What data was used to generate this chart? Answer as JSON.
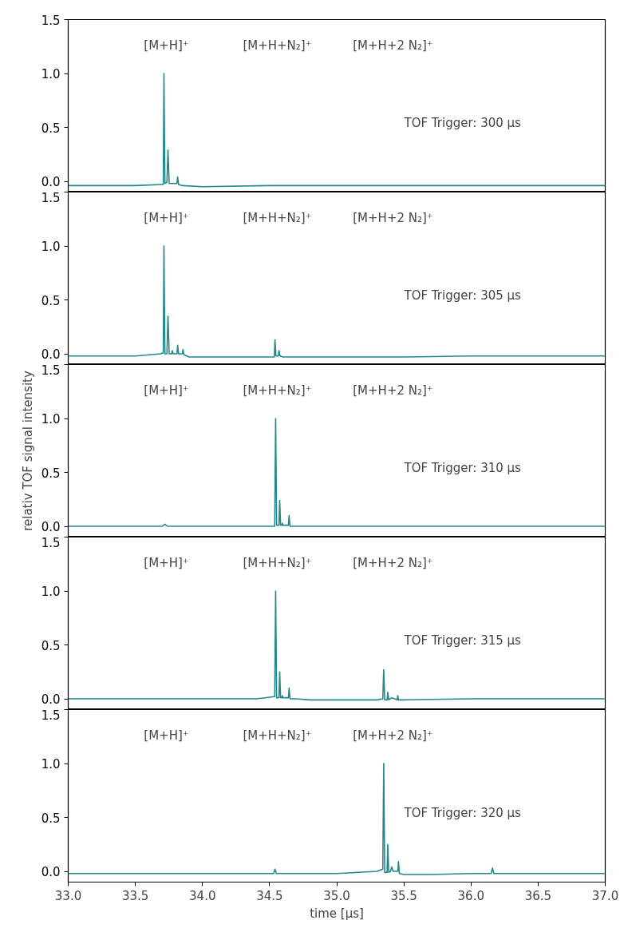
{
  "chart_data": [
    {
      "type": "line",
      "xlim": [
        33.0,
        37.0
      ],
      "ylim": [
        -0.1,
        1.5
      ],
      "tick_labels": "y",
      "yticks": [
        {
          "value": 0,
          "label": "0.0"
        },
        {
          "value": 0.5,
          "label": "0.5"
        },
        {
          "value": 1,
          "label": "1.0"
        },
        {
          "value": 1.5,
          "label": "1.5"
        }
      ],
      "annotations": [
        "[M+H]⁺",
        "[M+H+N₂]⁺",
        "[M+H+2 N₂]⁺",
        "TOF Trigger: 300 μs"
      ],
      "series": [
        {
          "color": "#23888e",
          "x": [
            33.0,
            33.5,
            33.7,
            33.708,
            33.713,
            33.72,
            33.735,
            33.743,
            33.752,
            33.81,
            33.815,
            33.822,
            33.85,
            34.0,
            34.5,
            35.0,
            35.5,
            36.0,
            36.5,
            37.0
          ],
          "values": [
            -0.04,
            -0.04,
            -0.03,
            -0.03,
            1.0,
            -0.02,
            -0.01,
            0.29,
            -0.02,
            -0.02,
            0.04,
            -0.03,
            -0.04,
            -0.05,
            -0.04,
            -0.04,
            -0.04,
            -0.04,
            -0.04,
            -0.04
          ]
        }
      ]
    },
    {
      "type": "line",
      "xlim": [
        33.0,
        37.0
      ],
      "ylim": [
        -0.1,
        1.5
      ],
      "tick_labels": "y",
      "yticks": [
        {
          "value": 0,
          "label": "0.0"
        },
        {
          "value": 0.5,
          "label": "0.5"
        },
        {
          "value": 1,
          "label": "1.0"
        },
        {
          "value": 1.5,
          "label": "1.5"
        }
      ],
      "annotations": [
        "[M+H]⁺",
        "[M+H+N₂]⁺",
        "[M+H+2 N₂]⁺",
        "TOF Trigger: 305 μs"
      ],
      "series": [
        {
          "color": "#23888e",
          "x": [
            33.0,
            33.5,
            33.69,
            33.708,
            33.713,
            33.72,
            33.735,
            33.743,
            33.752,
            33.77,
            33.775,
            33.782,
            33.81,
            33.815,
            33.822,
            33.85,
            33.855,
            33.862,
            33.9,
            34.0,
            34.5,
            34.535,
            34.54,
            34.547,
            34.565,
            34.57,
            34.577,
            34.6,
            35.0,
            35.5,
            36.0,
            36.5,
            37.0
          ],
          "values": [
            -0.02,
            -0.02,
            0.0,
            0.01,
            1.0,
            0.0,
            0.0,
            0.35,
            0.0,
            0.0,
            0.03,
            0.0,
            0.0,
            0.08,
            0.0,
            0.0,
            0.04,
            -0.01,
            -0.03,
            -0.03,
            -0.03,
            -0.03,
            0.13,
            -0.02,
            -0.02,
            0.03,
            -0.02,
            -0.03,
            -0.03,
            -0.03,
            -0.02,
            -0.02,
            -0.02
          ]
        }
      ]
    },
    {
      "type": "line",
      "xlim": [
        33.0,
        37.0
      ],
      "ylim": [
        -0.1,
        1.5
      ],
      "tick_labels": "y",
      "ylabel": "relativ TOF signal intensity",
      "yticks": [
        {
          "value": 0,
          "label": "0.0"
        },
        {
          "value": 0.5,
          "label": "0.5"
        },
        {
          "value": 1,
          "label": "1.0"
        },
        {
          "value": 1.5,
          "label": "1.5"
        }
      ],
      "annotations": [
        "[M+H]⁺",
        "[M+H+N₂]⁺",
        "[M+H+2 N₂]⁺",
        "TOF Trigger: 310 μs"
      ],
      "series": [
        {
          "color": "#23888e",
          "x": [
            33.0,
            33.7,
            33.72,
            33.74,
            34.0,
            34.5,
            34.538,
            34.545,
            34.552,
            34.57,
            34.575,
            34.582,
            34.59,
            34.595,
            34.6,
            34.64,
            34.645,
            34.652,
            34.7,
            35.0,
            36.0,
            37.0
          ],
          "values": [
            0,
            0,
            0.02,
            0,
            0,
            0,
            0,
            1.0,
            0.01,
            0.01,
            0.24,
            0.01,
            0.01,
            0.03,
            0.01,
            0.01,
            0.1,
            0.0,
            0.0,
            0,
            0,
            0
          ]
        }
      ]
    },
    {
      "type": "line",
      "xlim": [
        33.0,
        37.0
      ],
      "ylim": [
        -0.1,
        1.5
      ],
      "tick_labels": "y",
      "yticks": [
        {
          "value": 0,
          "label": "0.0"
        },
        {
          "value": 0.5,
          "label": "0.5"
        },
        {
          "value": 1,
          "label": "1.0"
        },
        {
          "value": 1.5,
          "label": "1.5"
        }
      ],
      "annotations": [
        "[M+H]⁺",
        "[M+H+N₂]⁺",
        "[M+H+2 N₂]⁺",
        "TOF Trigger: 315 μs"
      ],
      "series": [
        {
          "color": "#23888e",
          "x": [
            33.0,
            34.0,
            34.4,
            34.538,
            34.545,
            34.552,
            34.57,
            34.575,
            34.582,
            34.59,
            34.595,
            34.6,
            34.64,
            34.645,
            34.652,
            34.7,
            34.8,
            35.0,
            35.3,
            35.343,
            35.35,
            35.357,
            35.375,
            35.38,
            35.387,
            35.41,
            35.45,
            35.455,
            35.46,
            35.5,
            36.0,
            37.0
          ],
          "values": [
            0,
            0,
            0,
            0.02,
            1.0,
            0.01,
            0.01,
            0.25,
            0.01,
            0.01,
            0.03,
            0.01,
            0.01,
            0.1,
            0.0,
            0.0,
            -0.01,
            -0.01,
            -0.01,
            0.0,
            0.27,
            -0.01,
            -0.01,
            0.06,
            -0.01,
            0.01,
            -0.01,
            0.03,
            -0.01,
            -0.01,
            0,
            0
          ]
        }
      ]
    },
    {
      "type": "line",
      "xlim": [
        33.0,
        37.0
      ],
      "ylim": [
        -0.1,
        1.5
      ],
      "xlabel": "time [μs]",
      "xticks": [
        {
          "value": 33,
          "label": "33.0"
        },
        {
          "value": 33.5,
          "label": "33.5"
        },
        {
          "value": 34,
          "label": "34.0"
        },
        {
          "value": 34.5,
          "label": "34.5"
        },
        {
          "value": 35,
          "label": "35.0"
        },
        {
          "value": 35.5,
          "label": "35.5"
        },
        {
          "value": 36,
          "label": "36.0"
        },
        {
          "value": 36.5,
          "label": "36.5"
        },
        {
          "value": 37,
          "label": "37.0"
        }
      ],
      "yticks": [
        {
          "value": 0,
          "label": "0.0"
        },
        {
          "value": 0.5,
          "label": "0.5"
        },
        {
          "value": 1,
          "label": "1.0"
        },
        {
          "value": 1.5,
          "label": "1.5"
        }
      ],
      "annotations": [
        "[M+H]⁺",
        "[M+H+N₂]⁺",
        "[M+H+2 N₂]⁺",
        "TOF Trigger: 320 μs"
      ],
      "series": [
        {
          "color": "#23888e",
          "x": [
            33.0,
            34.0,
            34.53,
            34.54,
            34.55,
            35.0,
            35.3,
            35.343,
            35.35,
            35.357,
            35.375,
            35.38,
            35.387,
            35.4,
            35.41,
            35.42,
            35.455,
            35.46,
            35.467,
            35.5,
            35.7,
            36.0,
            36.15,
            36.16,
            36.17,
            36.5,
            37.0
          ],
          "values": [
            -0.02,
            -0.02,
            -0.02,
            0.02,
            -0.02,
            -0.02,
            0.0,
            0.02,
            1.0,
            -0.01,
            -0.01,
            0.25,
            -0.01,
            0.0,
            0.04,
            0.0,
            0.0,
            0.09,
            -0.02,
            -0.03,
            -0.03,
            -0.02,
            -0.02,
            0.03,
            -0.02,
            -0.02,
            -0.02
          ]
        }
      ]
    }
  ]
}
